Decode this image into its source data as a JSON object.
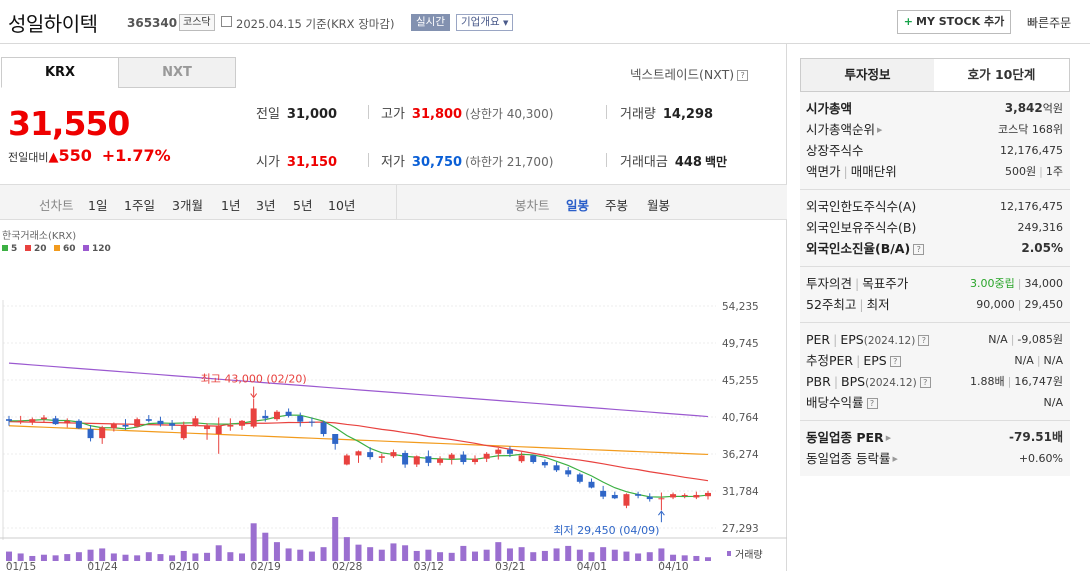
{
  "header": {
    "stock_name": "성일하이텍",
    "code": "365340",
    "market_badge": "코스닥",
    "date_text": "2025.04.15 기준(KRX 장마감)",
    "realtime_label": "실시간",
    "company_label": "기업개요",
    "mystock_label": "MY STOCK 추가",
    "quick_order_label": "빠른주문"
  },
  "market_tabs": [
    "KRX",
    "NXT"
  ],
  "nextrade_link": "넥스트레이드(NXT)",
  "quote": {
    "price": "31,550",
    "change_label": "전일대비",
    "change_value": "550",
    "change_pct": "+1.77%",
    "prev_close_label": "전일",
    "prev_close": "31,000",
    "high_label": "고가",
    "high": "31,800",
    "upper_limit": "(상한가 40,300)",
    "volume_label": "거래량",
    "volume": "14,298",
    "open_label": "시가",
    "open": "31,150",
    "low_label": "저가",
    "low": "30,750",
    "lower_limit": "(하한가 21,700)",
    "amount_label": "거래대금",
    "amount": "448",
    "amount_unit": "백만"
  },
  "chart_toolbar": {
    "left": [
      "선차트",
      "1일",
      "1주일",
      "3개월",
      "1년",
      "3년",
      "5년",
      "10년"
    ],
    "right": [
      "봉차트",
      "일봉",
      "주봉",
      "월봉"
    ]
  },
  "chart_data": {
    "type": "candlestick",
    "title": "한국거래소(KRX)",
    "legend": [
      {
        "name": "5",
        "color": "#3cb043"
      },
      {
        "name": "20",
        "color": "#e8423f"
      },
      {
        "name": "60",
        "color": "#f29b1d"
      },
      {
        "name": "120",
        "color": "#9b59d0"
      }
    ],
    "y_ticks": [
      "54,235",
      "49,745",
      "45,255",
      "40,764",
      "36,274",
      "31,784",
      "27,293"
    ],
    "ylim": [
      27293,
      54235
    ],
    "x_ticks": [
      "01/15",
      "01/24",
      "02/10",
      "02/19",
      "02/28",
      "03/12",
      "03/21",
      "04/01",
      "04/10"
    ],
    "x_tick_index": [
      0,
      7,
      14,
      21,
      28,
      35,
      42,
      49,
      56
    ],
    "candles": [
      [
        40500,
        40900,
        39700,
        40300
      ],
      [
        40300,
        40900,
        39900,
        40300
      ],
      [
        40200,
        40700,
        39800,
        40500
      ],
      [
        40500,
        41000,
        40100,
        40700
      ],
      [
        40600,
        40900,
        39800,
        39900
      ],
      [
        40000,
        40600,
        39500,
        40300
      ],
      [
        40300,
        40500,
        39300,
        39400
      ],
      [
        39300,
        39800,
        37800,
        38200
      ],
      [
        38200,
        39700,
        37500,
        39500
      ],
      [
        39400,
        40100,
        39000,
        39900
      ],
      [
        39800,
        40500,
        39200,
        39600
      ],
      [
        39600,
        40700,
        39500,
        40500
      ],
      [
        40500,
        41000,
        40100,
        40300
      ],
      [
        40300,
        40800,
        39600,
        39900
      ],
      [
        40000,
        40400,
        39200,
        39700
      ],
      [
        38200,
        40200,
        38000,
        39800
      ],
      [
        39800,
        40900,
        39600,
        40600
      ],
      [
        39300,
        40000,
        38000,
        39700
      ],
      [
        38700,
        40700,
        36300,
        39700
      ],
      [
        39600,
        40600,
        39100,
        39800
      ],
      [
        39700,
        40400,
        39200,
        40300
      ],
      [
        39600,
        43000,
        39400,
        41800
      ],
      [
        40900,
        41600,
        40200,
        40600
      ],
      [
        40500,
        41600,
        40300,
        41400
      ],
      [
        41400,
        41800,
        40700,
        40900
      ],
      [
        40900,
        41300,
        39600,
        40200
      ],
      [
        40200,
        40700,
        39600,
        40100
      ],
      [
        40100,
        40300,
        38400,
        38700
      ],
      [
        38700,
        38700,
        36800,
        37500
      ],
      [
        35000,
        36300,
        34900,
        36100
      ],
      [
        36100,
        36700,
        35200,
        36600
      ],
      [
        36500,
        37100,
        35600,
        35900
      ],
      [
        35800,
        36300,
        35200,
        36000
      ],
      [
        36000,
        36800,
        35800,
        36500
      ],
      [
        36400,
        36700,
        34600,
        35000
      ],
      [
        35000,
        36100,
        34700,
        36000
      ],
      [
        36000,
        36700,
        34800,
        35200
      ],
      [
        35200,
        36000,
        34900,
        35700
      ],
      [
        35700,
        36400,
        35000,
        36200
      ],
      [
        36200,
        36600,
        35000,
        35300
      ],
      [
        35300,
        36100,
        35000,
        35700
      ],
      [
        35700,
        36500,
        35300,
        36300
      ],
      [
        36300,
        37000,
        35600,
        36800
      ],
      [
        36800,
        37200,
        35900,
        36300
      ],
      [
        35400,
        36500,
        35200,
        36100
      ],
      [
        36100,
        36200,
        35100,
        35300
      ],
      [
        35300,
        35600,
        34600,
        34900
      ],
      [
        34900,
        35300,
        34100,
        34300
      ],
      [
        34300,
        34700,
        33500,
        33800
      ],
      [
        33800,
        34000,
        32700,
        32900
      ],
      [
        32900,
        33300,
        32100,
        32200
      ],
      [
        31800,
        32400,
        30800,
        31100
      ],
      [
        31300,
        31700,
        30800,
        30900
      ],
      [
        30000,
        31500,
        29700,
        31400
      ],
      [
        31400,
        31700,
        30900,
        31200
      ],
      [
        31100,
        31500,
        30500,
        30800
      ],
      [
        30900,
        31600,
        29450,
        30900
      ],
      [
        31000,
        31600,
        30800,
        31400
      ],
      [
        31200,
        31500,
        30900,
        31300
      ],
      [
        31000,
        31700,
        30800,
        31300
      ],
      [
        31150,
        31800,
        30750,
        31550
      ]
    ],
    "annotations": {
      "high": {
        "text": "최고 43,000 (02/20)",
        "index": 21,
        "value": 43000
      },
      "low": {
        "text": "최저 29,450 (04/09)",
        "index": 56,
        "value": 29450
      }
    },
    "volume_label": "거래량",
    "volumes": [
      15,
      12,
      8,
      10,
      9,
      11,
      14,
      18,
      20,
      12,
      10,
      9,
      14,
      11,
      9,
      16,
      12,
      13,
      25,
      14,
      12,
      60,
      45,
      30,
      20,
      18,
      15,
      22,
      70,
      38,
      26,
      22,
      18,
      28,
      25,
      16,
      18,
      14,
      13,
      24,
      15,
      18,
      30,
      20,
      22,
      14,
      16,
      20,
      24,
      18,
      14,
      22,
      18,
      15,
      12,
      14,
      20,
      10,
      9,
      8,
      6
    ]
  },
  "info_tabs": [
    "투자정보",
    "호가 10단계"
  ],
  "investment_info": {
    "market_cap_label": "시가총액",
    "market_cap": "3,842",
    "market_cap_unit": "억원",
    "cap_rank_label": "시가총액순위",
    "cap_rank": "코스닥 168위",
    "listed_shares_label": "상장주식수",
    "listed_shares": "12,176,475",
    "par_label": "액면가",
    "unit_label": "매매단위",
    "par_value": "500원",
    "trade_unit": "1주",
    "foreign_limit_label": "외국인한도주식수(A)",
    "foreign_limit": "12,176,475",
    "foreign_hold_label": "외국인보유주식수(B)",
    "foreign_hold": "249,316",
    "foreign_ratio_label": "외국인소진율(B/A)",
    "foreign_ratio": "2.05%",
    "opinion_label": "투자의견",
    "target_label": "목표주가",
    "opinion": "3.00중립",
    "target": "34,000",
    "w52_high_label": "52주최고",
    "w52_low_label": "최저",
    "w52_high": "90,000",
    "w52_low": "29,450",
    "per_label": "PER",
    "eps_label": "EPS",
    "eps_year": "(2024.12)",
    "per": "N/A",
    "eps": "-9,085원",
    "est_per_label": "추정PER",
    "est_eps_label": "EPS",
    "est_per": "N/A",
    "est_eps": "N/A",
    "pbr_label": "PBR",
    "bps_label": "BPS",
    "bps_year": "(2024.12)",
    "pbr": "1.88배",
    "bps": "16,747원",
    "div_label": "배당수익률",
    "div": "N/A",
    "ind_per_label": "동일업종 PER",
    "ind_per": "-79.51배",
    "ind_rate_label": "동일업종 등락률",
    "ind_rate": "+0.60%"
  }
}
